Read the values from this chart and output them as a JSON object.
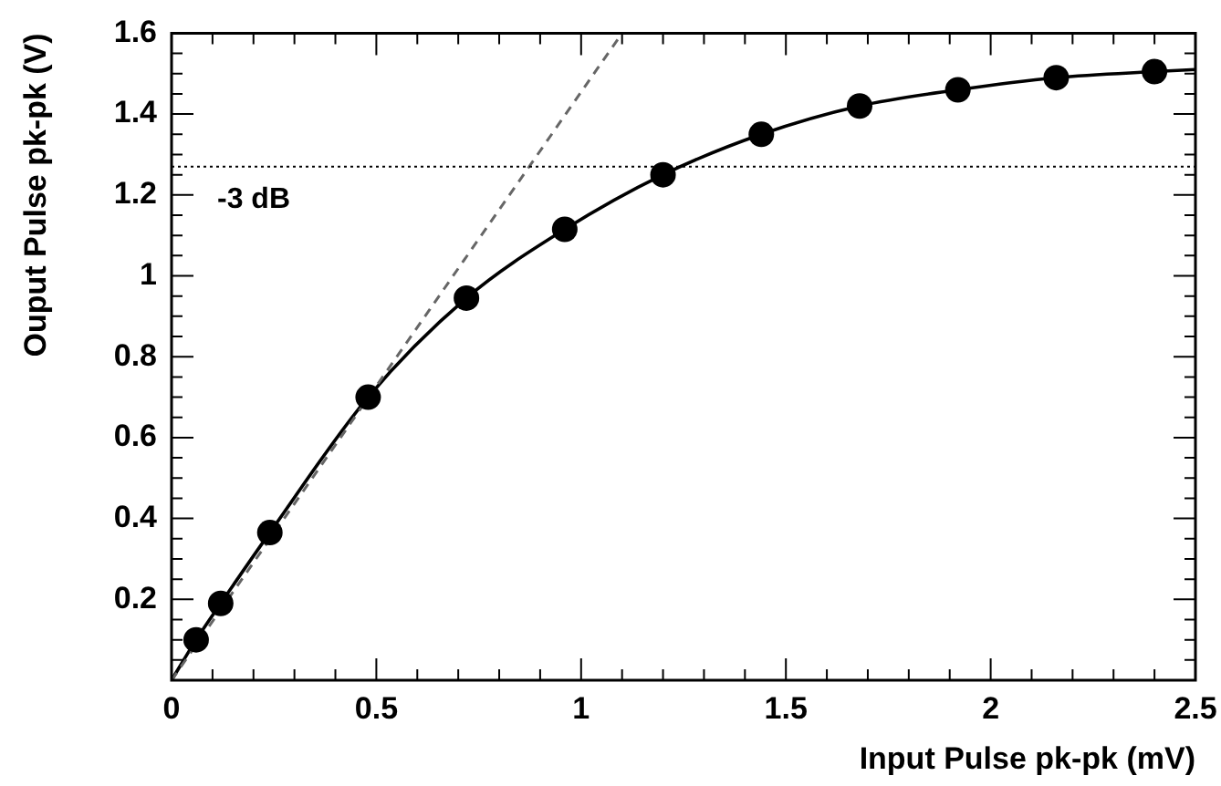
{
  "chart_data": {
    "type": "scatter",
    "xlabel": "Input Pulse pk-pk (mV)",
    "ylabel": "Ouput Pulse pk-pk (V)",
    "xlim": [
      0,
      2.5
    ],
    "ylim": [
      0,
      1.6
    ],
    "xticks": [
      0,
      {
        "value": 0.1,
        "label": null
      },
      {
        "value": 0.2,
        "label": null
      },
      {
        "value": 0.3,
        "label": null
      },
      {
        "value": 0.4,
        "label": null
      },
      0.5,
      {
        "value": 0.6,
        "label": null
      },
      {
        "value": 0.7,
        "label": null
      },
      {
        "value": 0.8,
        "label": null
      },
      {
        "value": 0.9,
        "label": null
      },
      1,
      {
        "value": 1.1,
        "label": null
      },
      {
        "value": 1.2,
        "label": null
      },
      {
        "value": 1.3,
        "label": null
      },
      {
        "value": 1.4,
        "label": null
      },
      1.5,
      {
        "value": 1.6,
        "label": null
      },
      {
        "value": 1.7,
        "label": null
      },
      {
        "value": 1.8,
        "label": null
      },
      {
        "value": 1.9,
        "label": null
      },
      2,
      {
        "value": 2.1,
        "label": null
      },
      {
        "value": 2.2,
        "label": null
      },
      {
        "value": 2.3,
        "label": null
      },
      {
        "value": 2.4,
        "label": null
      },
      2.5
    ],
    "yticks": [
      {
        "value": 0.05,
        "label": null
      },
      {
        "value": 0.1,
        "label": null
      },
      {
        "value": 0.15,
        "label": null
      },
      0.2,
      {
        "value": 0.25,
        "label": null
      },
      {
        "value": 0.3,
        "label": null
      },
      {
        "value": 0.35,
        "label": null
      },
      0.4,
      {
        "value": 0.45,
        "label": null
      },
      {
        "value": 0.5,
        "label": null
      },
      {
        "value": 0.55,
        "label": null
      },
      0.6,
      {
        "value": 0.65,
        "label": null
      },
      {
        "value": 0.7,
        "label": null
      },
      {
        "value": 0.75,
        "label": null
      },
      0.8,
      {
        "value": 0.85,
        "label": null
      },
      {
        "value": 0.9,
        "label": null
      },
      {
        "value": 0.95,
        "label": null
      },
      1,
      {
        "value": 1.05,
        "label": null
      },
      {
        "value": 1.1,
        "label": null
      },
      {
        "value": 1.15,
        "label": null
      },
      1.2,
      {
        "value": 1.25,
        "label": null
      },
      {
        "value": 1.3,
        "label": null
      },
      {
        "value": 1.35,
        "label": null
      },
      1.4,
      {
        "value": 1.45,
        "label": null
      },
      {
        "value": 1.5,
        "label": null
      },
      {
        "value": 1.55,
        "label": null
      },
      1.6
    ],
    "grid": false,
    "legend": false,
    "series": [
      {
        "type": "line",
        "color": "#000000",
        "marker": "none",
        "line_style": "solid",
        "x": [
          0,
          0.06,
          0.12,
          0.24,
          0.48,
          0.72,
          0.96,
          1.2,
          1.44,
          1.68,
          1.92,
          2.16,
          2.4,
          2.5
        ],
        "values": [
          0,
          0.1,
          0.19,
          0.365,
          0.7,
          0.945,
          1.115,
          1.25,
          1.35,
          1.42,
          1.46,
          1.49,
          1.505,
          1.51
        ]
      },
      {
        "type": "line",
        "color": "#666666",
        "marker": "none",
        "line_style": "dashed",
        "x": [
          0,
          1.1
        ],
        "values": [
          0,
          1.6
        ]
      },
      {
        "color": "#000000",
        "marker": "circle",
        "x": [
          0.06,
          0.12,
          0.24,
          0.48,
          0.72,
          0.96,
          1.2,
          1.44,
          1.68,
          1.92,
          2.16,
          2.4
        ],
        "values": [
          0.1,
          0.19,
          0.365,
          0.7,
          0.945,
          1.115,
          1.25,
          1.35,
          1.42,
          1.46,
          1.49,
          1.505
        ]
      }
    ],
    "ref_lines": [
      {
        "axis": "y",
        "value": 1.27,
        "label": "-3 dB",
        "color": "#000000",
        "line_style": "dotted"
      }
    ]
  }
}
